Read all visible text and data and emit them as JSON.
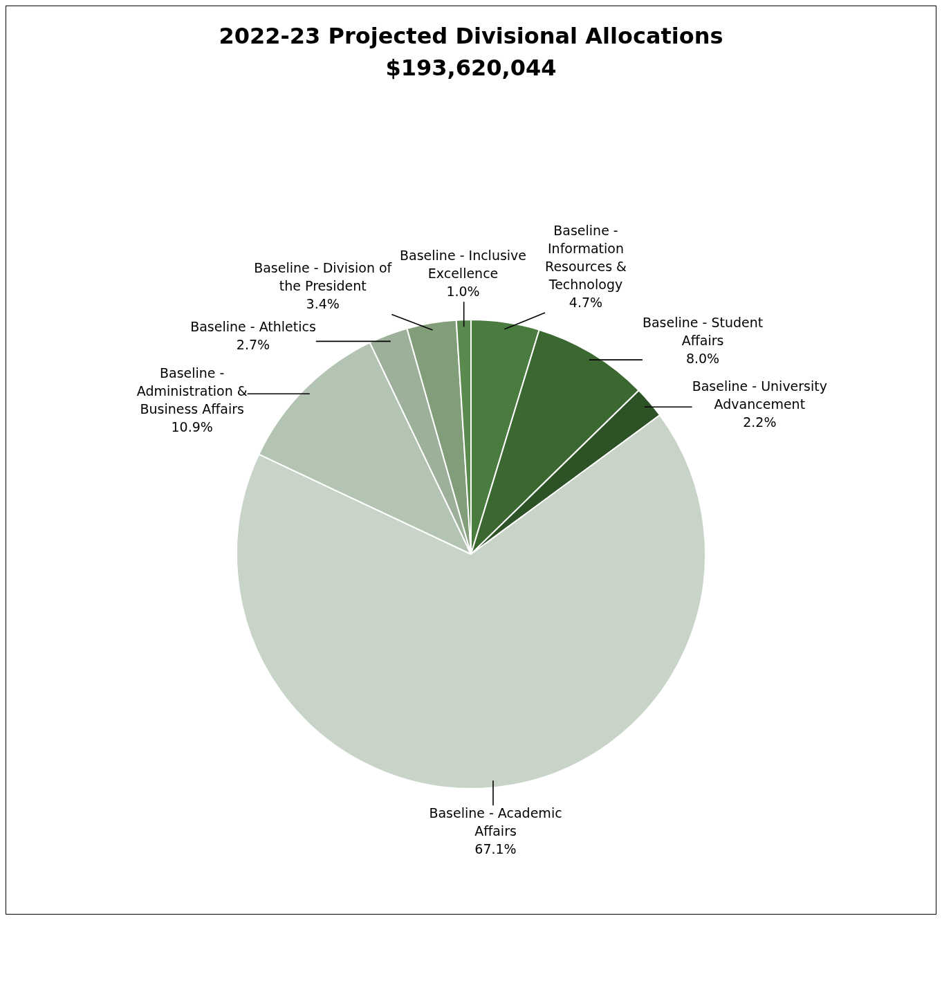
{
  "chart_data": {
    "type": "pie",
    "title": "2022-23 Projected Divisional Allocations",
    "subtitle": "$193,620,044",
    "categories": [
      "Baseline - Information Resources & Technology",
      "Baseline - Student Affairs",
      "Baseline - University Advancement",
      "Baseline - Academic Affairs",
      "Baseline - Administration & Business Affairs",
      "Baseline - Athletics",
      "Baseline - Division of the President",
      "Baseline - Inclusive Excellence"
    ],
    "values": [
      4.7,
      8.0,
      2.2,
      67.1,
      10.9,
      2.7,
      3.4,
      1.0
    ],
    "value_labels": [
      "4.7%",
      "8.0%",
      "2.2%",
      "67.1%",
      "10.9%",
      "2.7%",
      "3.4%",
      "1.0%"
    ],
    "colors": [
      "#4a7c3f",
      "#3b6830",
      "#2d5225",
      "#c8d4c8",
      "#b3c4b3",
      "#9db09a",
      "#819d7a",
      "#5a8a4e"
    ],
    "legend": false
  }
}
